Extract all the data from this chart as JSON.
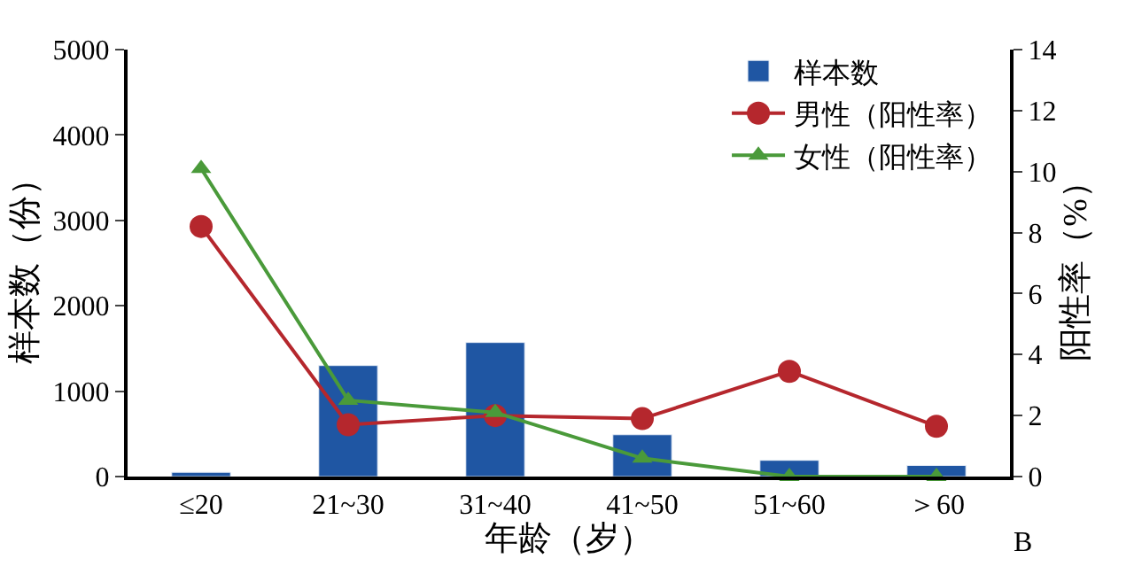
{
  "chart_data": {
    "type": "bar",
    "xlabel": "年龄（岁）",
    "ylabel": "样本数（份）",
    "y2label": "阳性率（%）",
    "categories": [
      "≤20",
      "21~30",
      "31~40",
      "41~50",
      "51~60",
      "＞60"
    ],
    "series": [
      {
        "name": "样本数",
        "color": "#1f56a3",
        "values": [
          50,
          1300,
          1570,
          490,
          190,
          130
        ]
      },
      {
        "name": "男性（阳性率）",
        "type": "line",
        "axis": "y2",
        "marker": "circle",
        "color": "#b5272d",
        "values": [
          8.2,
          1.7,
          2.0,
          1.9,
          3.45,
          1.65
        ]
      },
      {
        "name": "女性（阳性率）",
        "type": "line",
        "axis": "y2",
        "marker": "triangle",
        "color": "#4a9a3a",
        "values": [
          10.1,
          2.5,
          2.1,
          0.6,
          0,
          0
        ]
      }
    ],
    "ylim": [
      0,
      5000
    ],
    "yticks": [
      0,
      1000,
      2000,
      3000,
      4000,
      5000
    ],
    "y2lim": [
      0,
      14
    ],
    "y2ticks": [
      0,
      2,
      4,
      6,
      8,
      10,
      12,
      14
    ],
    "grid": false,
    "legend": "top right",
    "annotations": [
      "B"
    ]
  }
}
